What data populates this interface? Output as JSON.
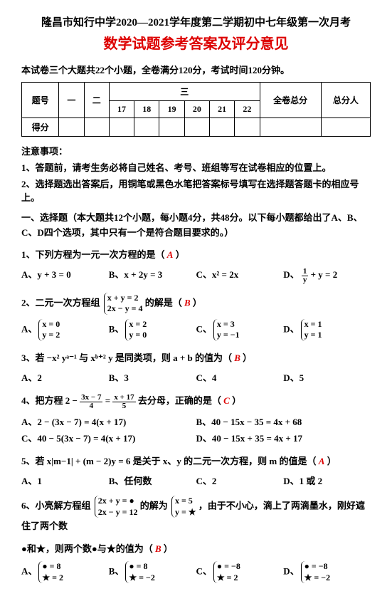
{
  "header": {
    "line1": "隆昌市知行中学2020—2021学年度第二学期初中七年级第一次月考",
    "line2": "数学试题参考答案及评分意见"
  },
  "intro": "本试卷三个大题共22个小题，全卷满分120分，考试时间120分钟。",
  "table": {
    "r1c1": "题号",
    "r1c2": "一",
    "r1c3": "二",
    "r1c4h": "三",
    "t17": "17",
    "t18": "18",
    "t19": "19",
    "t20": "20",
    "t21": "21",
    "t22": "22",
    "r1c5": "全卷总分",
    "r1c6": "总分人",
    "r2c1": "得分"
  },
  "notice": {
    "title": "注意事项：",
    "n1": "1、答题前，请考生务必将自己姓名、考号、班组等写在试卷相应的位置上。",
    "n2": "2、选择题选出答案后，用铜笔或黑色水笔把答案标号填写在选择题答题卡的相应号上。"
  },
  "section1": "一、选择题（本大题共12个小题，每小题4分，共48分。以下每小题都给出了A、B、C、D四个选项，其中只有一个是符合题目要求的。）",
  "q1": {
    "text": "1、下列方程为一元一次方程的是（",
    "ans": "A",
    "close": "）",
    "a": "A、y + 3 = 0",
    "b": "B、x + 2y = 3",
    "c": "C、x² = 2x",
    "d_pre": "D、",
    "d_num": "1",
    "d_den": "y",
    "d_suf": " + y = 2"
  },
  "q2": {
    "pre": "2、二元一次方程组",
    "s1": "x + y = 2",
    "s2": "2x − y = 4",
    "mid": "的解是（",
    "ans": "B",
    "close": "）",
    "a1": "x = 0",
    "a2": "y = 2",
    "b1": "x = 2",
    "b2": "y = 0",
    "c1": "x = 3",
    "c2": "y = −1",
    "d1": "x = 1",
    "d2": "y = 1"
  },
  "q3": {
    "text": "3、若 −x² yᵃ⁻¹ 与 xᵇ⁺² y 是同类项，则 a + b 的值为（",
    "ans": "B",
    "close": "）",
    "a": "A、2",
    "b": "B、3",
    "c": "C、4",
    "d": "D、5"
  },
  "q4": {
    "pre": "4、把方程 2 − ",
    "f1n": "3x − 7",
    "f1d": "4",
    "eq": " = ",
    "f2n": "x + 17",
    "f2d": "5",
    "mid": " 去分母，正确的是（",
    "ans": "C",
    "close": "）",
    "a": "A、2 − (3x − 7) = 4(x + 17)",
    "b": "B、40 − 15x − 35 = 4x + 68",
    "c": "C、40 − 5(3x − 7) = 4(x + 17)",
    "d": "D、40 − 15x + 35 = 4x + 17"
  },
  "q5": {
    "text": "5、若 x|m−1| + (m − 2)y = 6 是关于 x、y 的二元一次方程，则 m 的值是（",
    "ans": "A",
    "close": "）",
    "a": "A、1",
    "b": "B、任何数",
    "c": "C、2",
    "d": "D、1 或 2"
  },
  "q6": {
    "pre": "6、小亮解方程组",
    "s1": "2x + y = ●",
    "s2": "2x − y = 12",
    "mid1": "的解为",
    "r1": "x = 5",
    "r2": "y = ★",
    "mid2": "，由于不小心，滴上了两滴墨水，刚好遮住了两个数",
    "line2": "●和★，则两个数●与★的值为（",
    "ans": "B",
    "close": "）",
    "a1": "● = 8",
    "a2": "★ = 2",
    "b1": "● = 8",
    "b2": "★ = −2",
    "c1": "● = −8",
    "c2": "★ = 2",
    "d1": "● = −8",
    "d2": "★ = −2"
  },
  "lblA": "A、",
  "lblB": "B、",
  "lblC": "C、",
  "lblD": "D、"
}
